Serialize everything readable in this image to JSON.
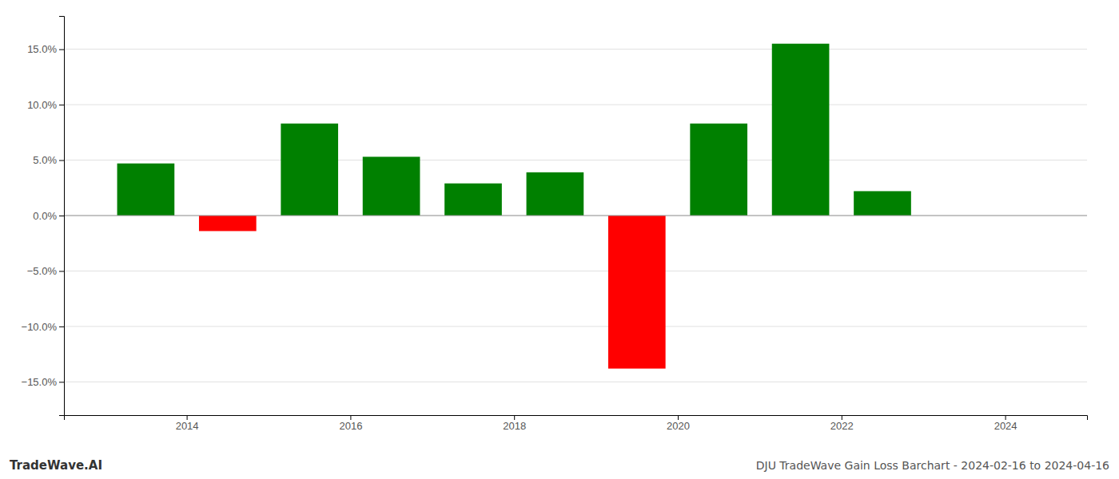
{
  "chart_data": {
    "type": "bar",
    "title": "DJU TradeWave Gain Loss Barchart - 2024-02-16 to 2024-04-16",
    "annotations": [
      "TradeWave.AI"
    ],
    "x": [
      2013.5,
      2014.5,
      2015.5,
      2016.5,
      2017.5,
      2018.5,
      2019.5,
      2020.5,
      2021.5,
      2022.5
    ],
    "values": [
      0.047,
      -0.014,
      0.083,
      0.053,
      0.029,
      0.039,
      -0.138,
      0.083,
      0.155,
      0.022
    ],
    "colors": [
      "#008000",
      "#ff0000",
      "#008000",
      "#008000",
      "#008000",
      "#008000",
      "#ff0000",
      "#008000",
      "#008000",
      "#008000"
    ],
    "xlim": [
      2012.5,
      2025.0
    ],
    "xticks": [
      2014,
      2016,
      2018,
      2020,
      2022,
      2024
    ],
    "ylim": [
      -0.18,
      0.18
    ],
    "yticks": [
      {
        "value": -0.15,
        "label": "−15.0%"
      },
      {
        "value": -0.1,
        "label": "−10.0%"
      },
      {
        "value": -0.05,
        "label": "−5.0%"
      },
      {
        "value": 0.0,
        "label": "0.0%"
      },
      {
        "value": 0.05,
        "label": "5.0%"
      },
      {
        "value": 0.1,
        "label": "10.0%"
      },
      {
        "value": 0.15,
        "label": "15.0%"
      }
    ],
    "grid": true
  }
}
